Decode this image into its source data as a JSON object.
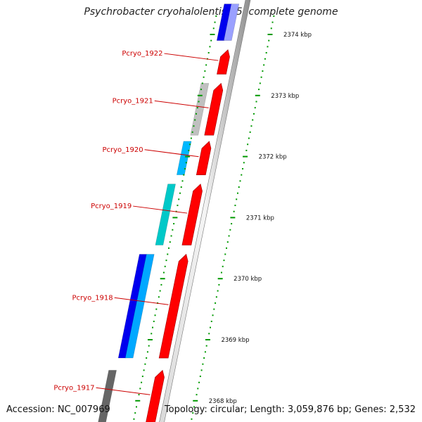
{
  "title": "Psychrobacter cryohalolentis K5, complete genome",
  "footer": {
    "accession": "Accession: NC_007969",
    "summary": "Topology: circular; Length: 3,059,876 bp; Genes: 2,532"
  },
  "genes": [
    {
      "label": "Pcryo_1922",
      "start_kbp": 2373.35,
      "end_kbp": 2373.75,
      "color": "#ff0000",
      "strand": "forward"
    },
    {
      "label": "Pcryo_1921",
      "start_kbp": 2372.35,
      "end_kbp": 2373.2,
      "color": "#ff0000",
      "strand": "forward"
    },
    {
      "label": "Pcryo_1920",
      "start_kbp": 2371.7,
      "end_kbp": 2372.25,
      "color": "#ff0000",
      "strand": "forward"
    },
    {
      "label": "Pcryo_1919",
      "start_kbp": 2370.55,
      "end_kbp": 2371.55,
      "color": "#ff0000",
      "strand": "forward"
    },
    {
      "label": "Pcryo_1918",
      "start_kbp": 2368.7,
      "end_kbp": 2370.4,
      "color": "#ff0000",
      "strand": "forward"
    },
    {
      "label": "Pcryo_1917",
      "start_kbp": 2367.65,
      "end_kbp": 2368.5,
      "color": "#ff0000",
      "strand": "forward"
    }
  ],
  "features": [
    {
      "start_kbp": 2373.9,
      "end_kbp": 2374.5,
      "color": "#0000ee"
    },
    {
      "start_kbp": 2373.9,
      "end_kbp": 2374.5,
      "color": "#9aa0ff"
    },
    {
      "start_kbp": 2372.35,
      "end_kbp": 2373.2,
      "color": "#c0c0c0"
    },
    {
      "start_kbp": 2371.7,
      "end_kbp": 2372.25,
      "color": "#00b8ff"
    },
    {
      "start_kbp": 2370.55,
      "end_kbp": 2371.55,
      "color": "#00c8c8"
    },
    {
      "start_kbp": 2368.7,
      "end_kbp": 2370.4,
      "color": "#0000ee"
    },
    {
      "start_kbp": 2368.7,
      "end_kbp": 2370.4,
      "color": "#00a8ff"
    },
    {
      "start_kbp": 2367.5,
      "end_kbp": 2368.5,
      "color": "#666666"
    }
  ],
  "ticks": [
    {
      "kbp": 2374,
      "label": "2374 kbp"
    },
    {
      "kbp": 2373,
      "label": "2373 kbp"
    },
    {
      "kbp": 2372,
      "label": "2372 kbp"
    },
    {
      "kbp": 2371,
      "label": "2371 kbp"
    },
    {
      "kbp": 2370,
      "label": "2370 kbp"
    },
    {
      "kbp": 2369,
      "label": "2369 kbp"
    },
    {
      "kbp": 2368,
      "label": "2368 kbp"
    }
  ],
  "colors": {
    "backbone": "#9a9a9a",
    "tick": "#009900",
    "gene_label": "#cc0000"
  }
}
